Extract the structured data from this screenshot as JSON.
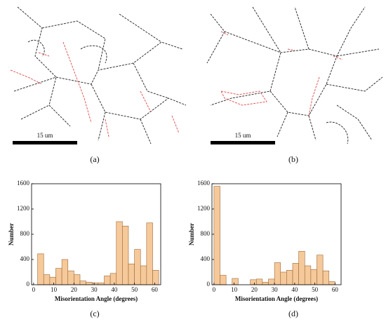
{
  "panels": {
    "a": {
      "scale": "15 um",
      "label": "(a)"
    },
    "b": {
      "scale": "15 um",
      "label": "(b)"
    }
  },
  "chart_data": [
    {
      "type": "histogram",
      "label": "(c)",
      "x_label": "Misorientation Angle (degrees)",
      "y_label": "Number",
      "bins": [
        2,
        5,
        8,
        11,
        14,
        17,
        20,
        23,
        26,
        29,
        32,
        35,
        38,
        41,
        44,
        47,
        50,
        53,
        56,
        59,
        62
      ],
      "values": [
        490,
        160,
        120,
        260,
        400,
        220,
        160,
        60,
        40,
        30,
        30,
        140,
        180,
        1000,
        930,
        330,
        560,
        300,
        980,
        230
      ],
      "color": "#f6c99a",
      "edge_color": "#9a6a3a",
      "xlim": [
        -1,
        63
      ],
      "xticks": [
        0,
        10,
        20,
        30,
        40,
        50,
        60
      ],
      "ylim": [
        0,
        1600
      ],
      "yticks": [
        0,
        400,
        800,
        1200,
        1600
      ]
    },
    {
      "type": "histogram",
      "label": "(d)",
      "x_label": "Misorientation Angle (degrees)",
      "y_label": "Number",
      "bins": [
        0,
        3,
        6,
        9,
        12,
        15,
        18,
        21,
        24,
        27,
        30,
        33,
        36,
        39,
        42,
        45,
        48,
        51,
        54,
        57,
        60
      ],
      "values": [
        1560,
        150,
        0,
        100,
        0,
        0,
        80,
        90,
        40,
        90,
        350,
        200,
        230,
        340,
        530,
        300,
        240,
        470,
        220,
        50
      ],
      "color": "#f6c99a",
      "edge_color": "#9a6a3a",
      "xlim": [
        -1,
        63
      ],
      "xticks": [
        0,
        10,
        20,
        30,
        40,
        50,
        60
      ],
      "ylim": [
        0,
        1600
      ],
      "yticks": [
        0,
        400,
        800,
        1200,
        1600
      ]
    }
  ]
}
